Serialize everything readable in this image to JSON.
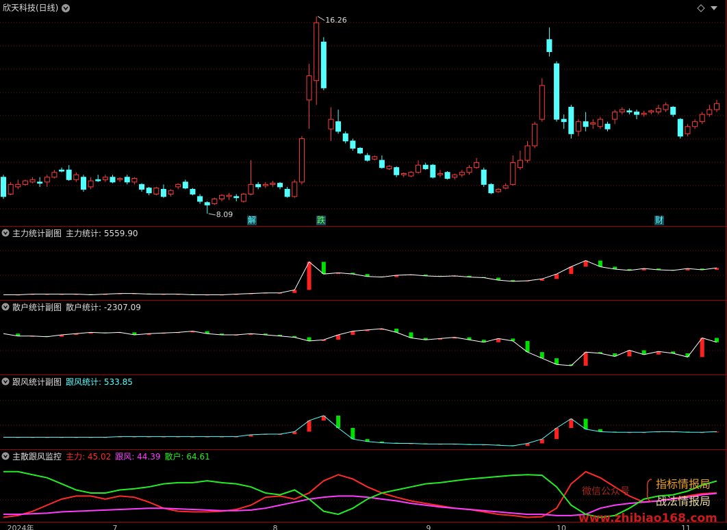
{
  "chart_data": [
    {
      "type": "candlestick",
      "title": "欣天科技(日线)",
      "open": [
        9.6,
        8.9,
        9.2,
        9.3,
        9.4,
        9.4,
        9.4,
        9.6,
        9.9,
        9.9,
        9.5,
        9.6,
        9.2,
        9.5,
        9.5,
        9.6,
        9.5,
        9.6,
        9.4,
        9.3,
        9.15,
        8.9,
        9.1,
        8.9,
        9.2,
        9.4,
        9.1,
        8.8,
        8.55,
        8.5,
        8.7,
        8.8,
        8.8,
        8.6,
        8.9,
        9.3,
        9.25,
        9.3,
        9.35,
        9.1,
        8.8,
        9.4,
        12.8,
        13.6,
        15.2,
        11.6,
        11.9,
        11.4,
        11.1,
        10.8,
        10.5,
        10.35,
        10.3,
        9.95,
        10.0,
        9.7,
        9.65,
        9.8,
        10.1,
        10.1,
        9.7,
        9.8,
        9.6,
        9.7,
        9.8,
        10.0,
        9.9,
        9.3,
        9.0,
        9.15,
        9.3,
        10.0,
        10.3,
        10.9,
        12.0,
        15.3,
        14.3,
        12.0,
        12.5,
        11.5,
        11.9,
        11.8,
        11.7,
        11.8,
        12.0,
        12.3,
        12.35,
        12.3,
        12.2,
        12.3,
        12.3,
        12.4,
        12.5,
        12.0,
        11.4,
        11.7,
        11.9,
        12.2,
        12.4
      ],
      "close": [
        8.8,
        9.3,
        9.3,
        9.45,
        9.5,
        9.35,
        9.6,
        9.8,
        9.85,
        9.5,
        9.7,
        9.1,
        9.45,
        9.45,
        9.6,
        9.4,
        9.55,
        9.4,
        9.55,
        9.1,
        8.95,
        9.15,
        8.8,
        9.05,
        9.3,
        9.15,
        8.9,
        8.6,
        8.45,
        8.7,
        8.85,
        8.85,
        8.75,
        8.9,
        9.3,
        9.2,
        9.3,
        9.35,
        9.2,
        8.8,
        9.4,
        11.2,
        13.8,
        16.0,
        13.3,
        12.0,
        11.5,
        11.1,
        10.8,
        10.6,
        10.3,
        10.45,
        10.0,
        10.05,
        9.7,
        9.75,
        9.8,
        10.1,
        9.95,
        9.6,
        9.75,
        9.55,
        9.7,
        9.8,
        10.0,
        10.2,
        9.3,
        8.95,
        9.1,
        9.25,
        10.2,
        10.3,
        10.9,
        11.8,
        13.4,
        14.8,
        12.0,
        11.9,
        11.4,
        11.9,
        11.7,
        11.85,
        12.0,
        11.6,
        12.3,
        12.4,
        12.3,
        12.2,
        12.25,
        12.35,
        12.45,
        12.6,
        12.2,
        11.3,
        11.7,
        11.9,
        12.2,
        12.4,
        12.65
      ],
      "high": [
        9.7,
        9.4,
        9.5,
        9.5,
        9.6,
        9.6,
        9.7,
        9.9,
        10.0,
        10.1,
        9.8,
        9.7,
        9.6,
        9.7,
        9.7,
        9.7,
        9.6,
        9.7,
        9.6,
        9.35,
        9.2,
        9.2,
        9.3,
        9.1,
        9.35,
        9.5,
        9.15,
        8.9,
        8.6,
        8.75,
        8.9,
        8.95,
        8.9,
        8.95,
        10.3,
        9.4,
        9.4,
        9.45,
        9.4,
        9.2,
        9.5,
        11.3,
        14.3,
        16.26,
        15.4,
        12.5,
        12.4,
        11.5,
        11.2,
        10.85,
        10.6,
        10.5,
        10.5,
        10.1,
        10.05,
        9.8,
        9.85,
        10.3,
        10.2,
        10.15,
        9.9,
        9.85,
        9.75,
        9.9,
        10.1,
        10.4,
        10.0,
        9.35,
        9.15,
        9.35,
        10.5,
        10.7,
        11.1,
        11.9,
        13.7,
        15.8,
        14.4,
        12.2,
        12.6,
        12.0,
        12.3,
        12.0,
        12.1,
        11.9,
        12.4,
        12.5,
        12.45,
        12.4,
        12.35,
        12.4,
        12.6,
        12.7,
        12.55,
        12.05,
        11.8,
        12.0,
        12.3,
        12.6,
        12.8
      ],
      "low": [
        8.7,
        8.85,
        9.1,
        9.25,
        9.35,
        9.2,
        9.2,
        9.55,
        9.8,
        9.45,
        9.4,
        9.0,
        9.1,
        9.4,
        9.4,
        9.35,
        9.4,
        9.3,
        9.3,
        9.0,
        8.85,
        8.85,
        8.75,
        8.8,
        9.1,
        9.1,
        8.85,
        8.5,
        8.09,
        8.45,
        8.6,
        8.65,
        8.6,
        8.55,
        8.85,
        9.1,
        9.15,
        9.2,
        9.1,
        8.75,
        8.75,
        9.3,
        11.6,
        12.6,
        13.2,
        11.1,
        11.4,
        11.0,
        10.7,
        10.55,
        10.25,
        10.3,
        9.95,
        9.9,
        9.6,
        9.6,
        9.6,
        9.75,
        9.9,
        9.55,
        9.6,
        9.5,
        9.5,
        9.6,
        9.7,
        9.95,
        9.2,
        8.9,
        8.95,
        9.1,
        9.25,
        9.9,
        10.2,
        10.8,
        11.9,
        14.6,
        11.9,
        11.6,
        11.2,
        11.3,
        11.5,
        11.6,
        11.6,
        11.5,
        11.8,
        12.2,
        12.2,
        12.0,
        12.1,
        12.2,
        12.2,
        12.3,
        12.1,
        11.2,
        11.3,
        11.6,
        11.8,
        12.1,
        12.3
      ],
      "up_color": "#ff3c3c",
      "down_color": "#54ffff",
      "ylim": [
        7.58,
        16.94
      ],
      "events": [
        "解",
        "跌",
        "财"
      ],
      "x_axis_labels": [
        "2024年",
        "7",
        "8",
        "9",
        "10",
        "11"
      ]
    },
    {
      "type": "line-bar",
      "title": "主力统计副图",
      "readout_name": "主力统计",
      "readout": ": 5559.90",
      "line_color": "#ffffff",
      "up_color": "#ff2020",
      "down_color": "#00e000",
      "ylim": [
        0,
        100
      ],
      "values": [
        4,
        4,
        5,
        5,
        5,
        5,
        4,
        5,
        6,
        6,
        5,
        5,
        5,
        4,
        4,
        4,
        5,
        6,
        7,
        7,
        12,
        58,
        38,
        40,
        38,
        34,
        33,
        36,
        37,
        35,
        34,
        35,
        33,
        32,
        28,
        26,
        27,
        30,
        38,
        50,
        60,
        50,
        46,
        44,
        47,
        45,
        44,
        47,
        45,
        48
      ]
    },
    {
      "type": "line-bar",
      "title": "散户统计副图",
      "readout_name": "散户统计",
      "readout": ": -2307.09",
      "line_color": "#ffffff",
      "up_color": "#ff2020",
      "down_color": "#00e000",
      "ylim": [
        0,
        100
      ],
      "values": [
        62,
        58,
        58,
        57,
        60,
        62,
        64,
        63,
        64,
        60,
        62,
        63,
        64,
        66,
        62,
        60,
        60,
        62,
        60,
        58,
        56,
        50,
        52,
        60,
        66,
        68,
        70,
        64,
        55,
        52,
        54,
        56,
        52,
        48,
        54,
        50,
        32,
        22,
        12,
        10,
        32,
        30,
        25,
        35,
        28,
        33,
        30,
        24,
        55,
        48
      ]
    },
    {
      "type": "line-bar",
      "title": "跟风统计副图",
      "readout_name": "跟风统计",
      "readout": ": 533.85",
      "line_color": "#54ffff",
      "up_color": "#ff2020",
      "down_color": "#00e000",
      "ylim": [
        0,
        100
      ],
      "values": [
        15,
        15,
        15,
        15,
        15,
        15,
        15,
        15,
        16,
        16,
        16,
        16,
        16,
        16,
        16,
        16,
        16,
        19,
        20,
        20,
        24,
        42,
        50,
        30,
        12,
        8,
        6,
        5,
        5,
        4,
        4,
        4,
        3,
        3,
        2,
        1,
        5,
        12,
        30,
        45,
        28,
        24,
        23,
        23,
        23,
        24,
        24,
        23,
        23,
        24
      ]
    },
    {
      "type": "line",
      "title": "主散跟风监控",
      "ylim": [
        0,
        100
      ],
      "series": [
        {
          "name": "主力",
          "readout": ": 45.02",
          "color": "#ff2a2a",
          "values": [
            5,
            8,
            15,
            25,
            35,
            40,
            40,
            35,
            40,
            38,
            30,
            20,
            15,
            14,
            14,
            15,
            18,
            25,
            38,
            40,
            35,
            45,
            65,
            75,
            68,
            55,
            45,
            38,
            32,
            28,
            24,
            20,
            18,
            14,
            10,
            8,
            5,
            6,
            20,
            60,
            80,
            70,
            55,
            40,
            30,
            32,
            36,
            40,
            44,
            45.02
          ]
        },
        {
          "name": "跟风",
          "readout": ": 44.39",
          "color": "#ff3cff",
          "values": [
            10,
            10,
            11,
            12,
            14,
            15,
            16,
            17,
            18,
            19,
            20,
            20,
            19,
            18,
            17,
            16,
            16,
            17,
            20,
            25,
            30,
            35,
            38,
            40,
            40,
            38,
            35,
            32,
            28,
            25,
            22,
            20,
            18,
            16,
            14,
            12,
            10,
            10,
            8,
            8,
            10,
            20,
            25,
            28,
            30,
            32,
            35,
            38,
            42,
            44.39
          ]
        },
        {
          "name": "散户",
          "readout": ": 64.61",
          "color": "#22ee22",
          "values": [
            80,
            80,
            75,
            70,
            60,
            50,
            45,
            45,
            50,
            52,
            55,
            60,
            62,
            62,
            65,
            62,
            60,
            55,
            45,
            42,
            50,
            35,
            15,
            10,
            20,
            35,
            45,
            50,
            55,
            60,
            62,
            65,
            68,
            70,
            72,
            74,
            75,
            74,
            55,
            25,
            10,
            5,
            8,
            20,
            35,
            40,
            42,
            48,
            58,
            64.61
          ]
        }
      ]
    }
  ],
  "watermark": {
    "line1": "微信公众号",
    "line2": "指标情报局",
    "line3": "战法情报局",
    "url": "www.zhibiao168.com"
  }
}
